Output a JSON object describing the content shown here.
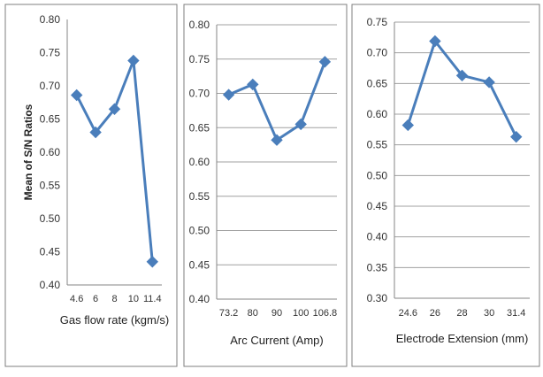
{
  "chart_data": [
    {
      "type": "line",
      "ylabel": "Mean of S/N Ratios",
      "xlabel": "Gas flow rate (kgm/s)",
      "categories": [
        "4.6",
        "6",
        "8",
        "10",
        "11.4"
      ],
      "values": [
        0.686,
        0.63,
        0.665,
        0.738,
        0.435
      ],
      "ylim": [
        0.4,
        0.8
      ],
      "yticks": [
        "0.80",
        "0.75",
        "0.70",
        "0.65",
        "0.60",
        "0.55",
        "0.50",
        "0.45",
        "0.40"
      ],
      "grid": false
    },
    {
      "type": "line",
      "ylabel": "",
      "xlabel": "Arc Current (Amp)",
      "categories": [
        "73.2",
        "80",
        "90",
        "100",
        "106.8"
      ],
      "values": [
        0.698,
        0.713,
        0.632,
        0.655,
        0.746
      ],
      "ylim": [
        0.4,
        0.8
      ],
      "yticks": [
        "0.80",
        "0.75",
        "0.70",
        "0.65",
        "0.60",
        "0.55",
        "0.50",
        "0.45",
        "0.40"
      ],
      "grid": true
    },
    {
      "type": "line",
      "ylabel": "",
      "xlabel": "Electrode Extension (mm)",
      "categories": [
        "24.6",
        "26",
        "28",
        "30",
        "31.4"
      ],
      "values": [
        0.582,
        0.719,
        0.663,
        0.652,
        0.563
      ],
      "ylim": [
        0.3,
        0.75
      ],
      "yticks": [
        "0.75",
        "0.70",
        "0.65",
        "0.60",
        "0.55",
        "0.50",
        "0.45",
        "0.40",
        "0.35",
        "0.30"
      ],
      "grid": true
    }
  ],
  "colors": {
    "series": "#4a7ebb",
    "grid": "#a0a0a0",
    "axis": "#868686",
    "frame": "#7f7f7f",
    "text": "#333333"
  }
}
